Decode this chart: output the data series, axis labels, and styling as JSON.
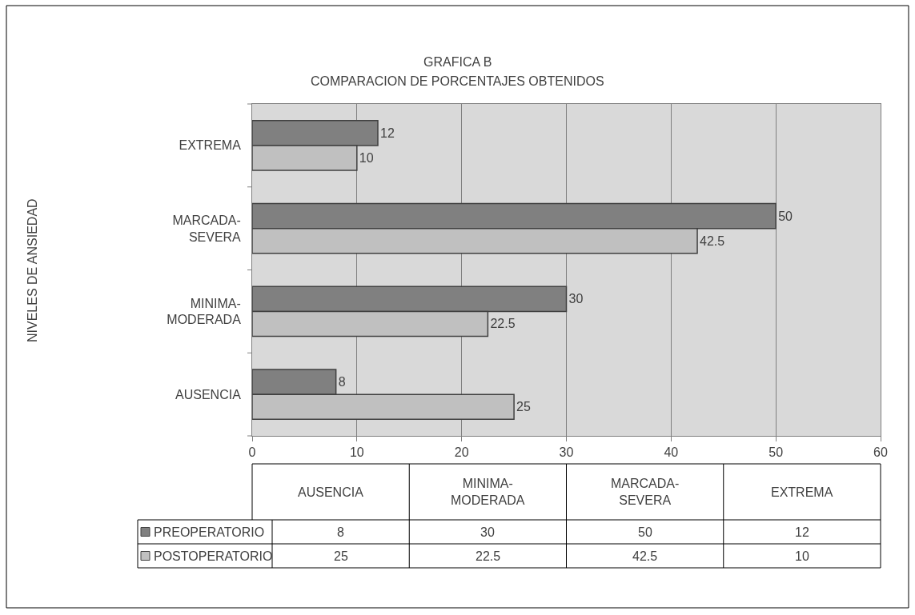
{
  "chart_data": {
    "type": "bar",
    "orientation": "horizontal",
    "title": "GRAFICA B",
    "subtitle": "COMPARACION DE PORCENTAJES OBTENIDOS",
    "annotations": [
      "NIVELES DE ANSIEDAD"
    ],
    "categories": [
      "EXTREMA",
      "MARCADA-SEVERA",
      "MINIMA-MODERADA",
      "AUSENCIA"
    ],
    "series": [
      {
        "name": "PREOPERATORIO",
        "color": "#808080",
        "values": [
          12,
          50,
          30,
          8
        ],
        "value_labels": [
          "12",
          "50",
          "30",
          "8"
        ]
      },
      {
        "name": "POSTOPERATORIO",
        "color": "#c0c0c0",
        "values": [
          10,
          42.5,
          22.5,
          25
        ],
        "value_labels": [
          "10",
          "42.5",
          "22.5",
          "25"
        ]
      }
    ],
    "xlim": [
      0,
      60
    ],
    "xticks": [
      0,
      10,
      20,
      30,
      40,
      50,
      60
    ],
    "grid": "x",
    "legend": "bottom"
  }
}
